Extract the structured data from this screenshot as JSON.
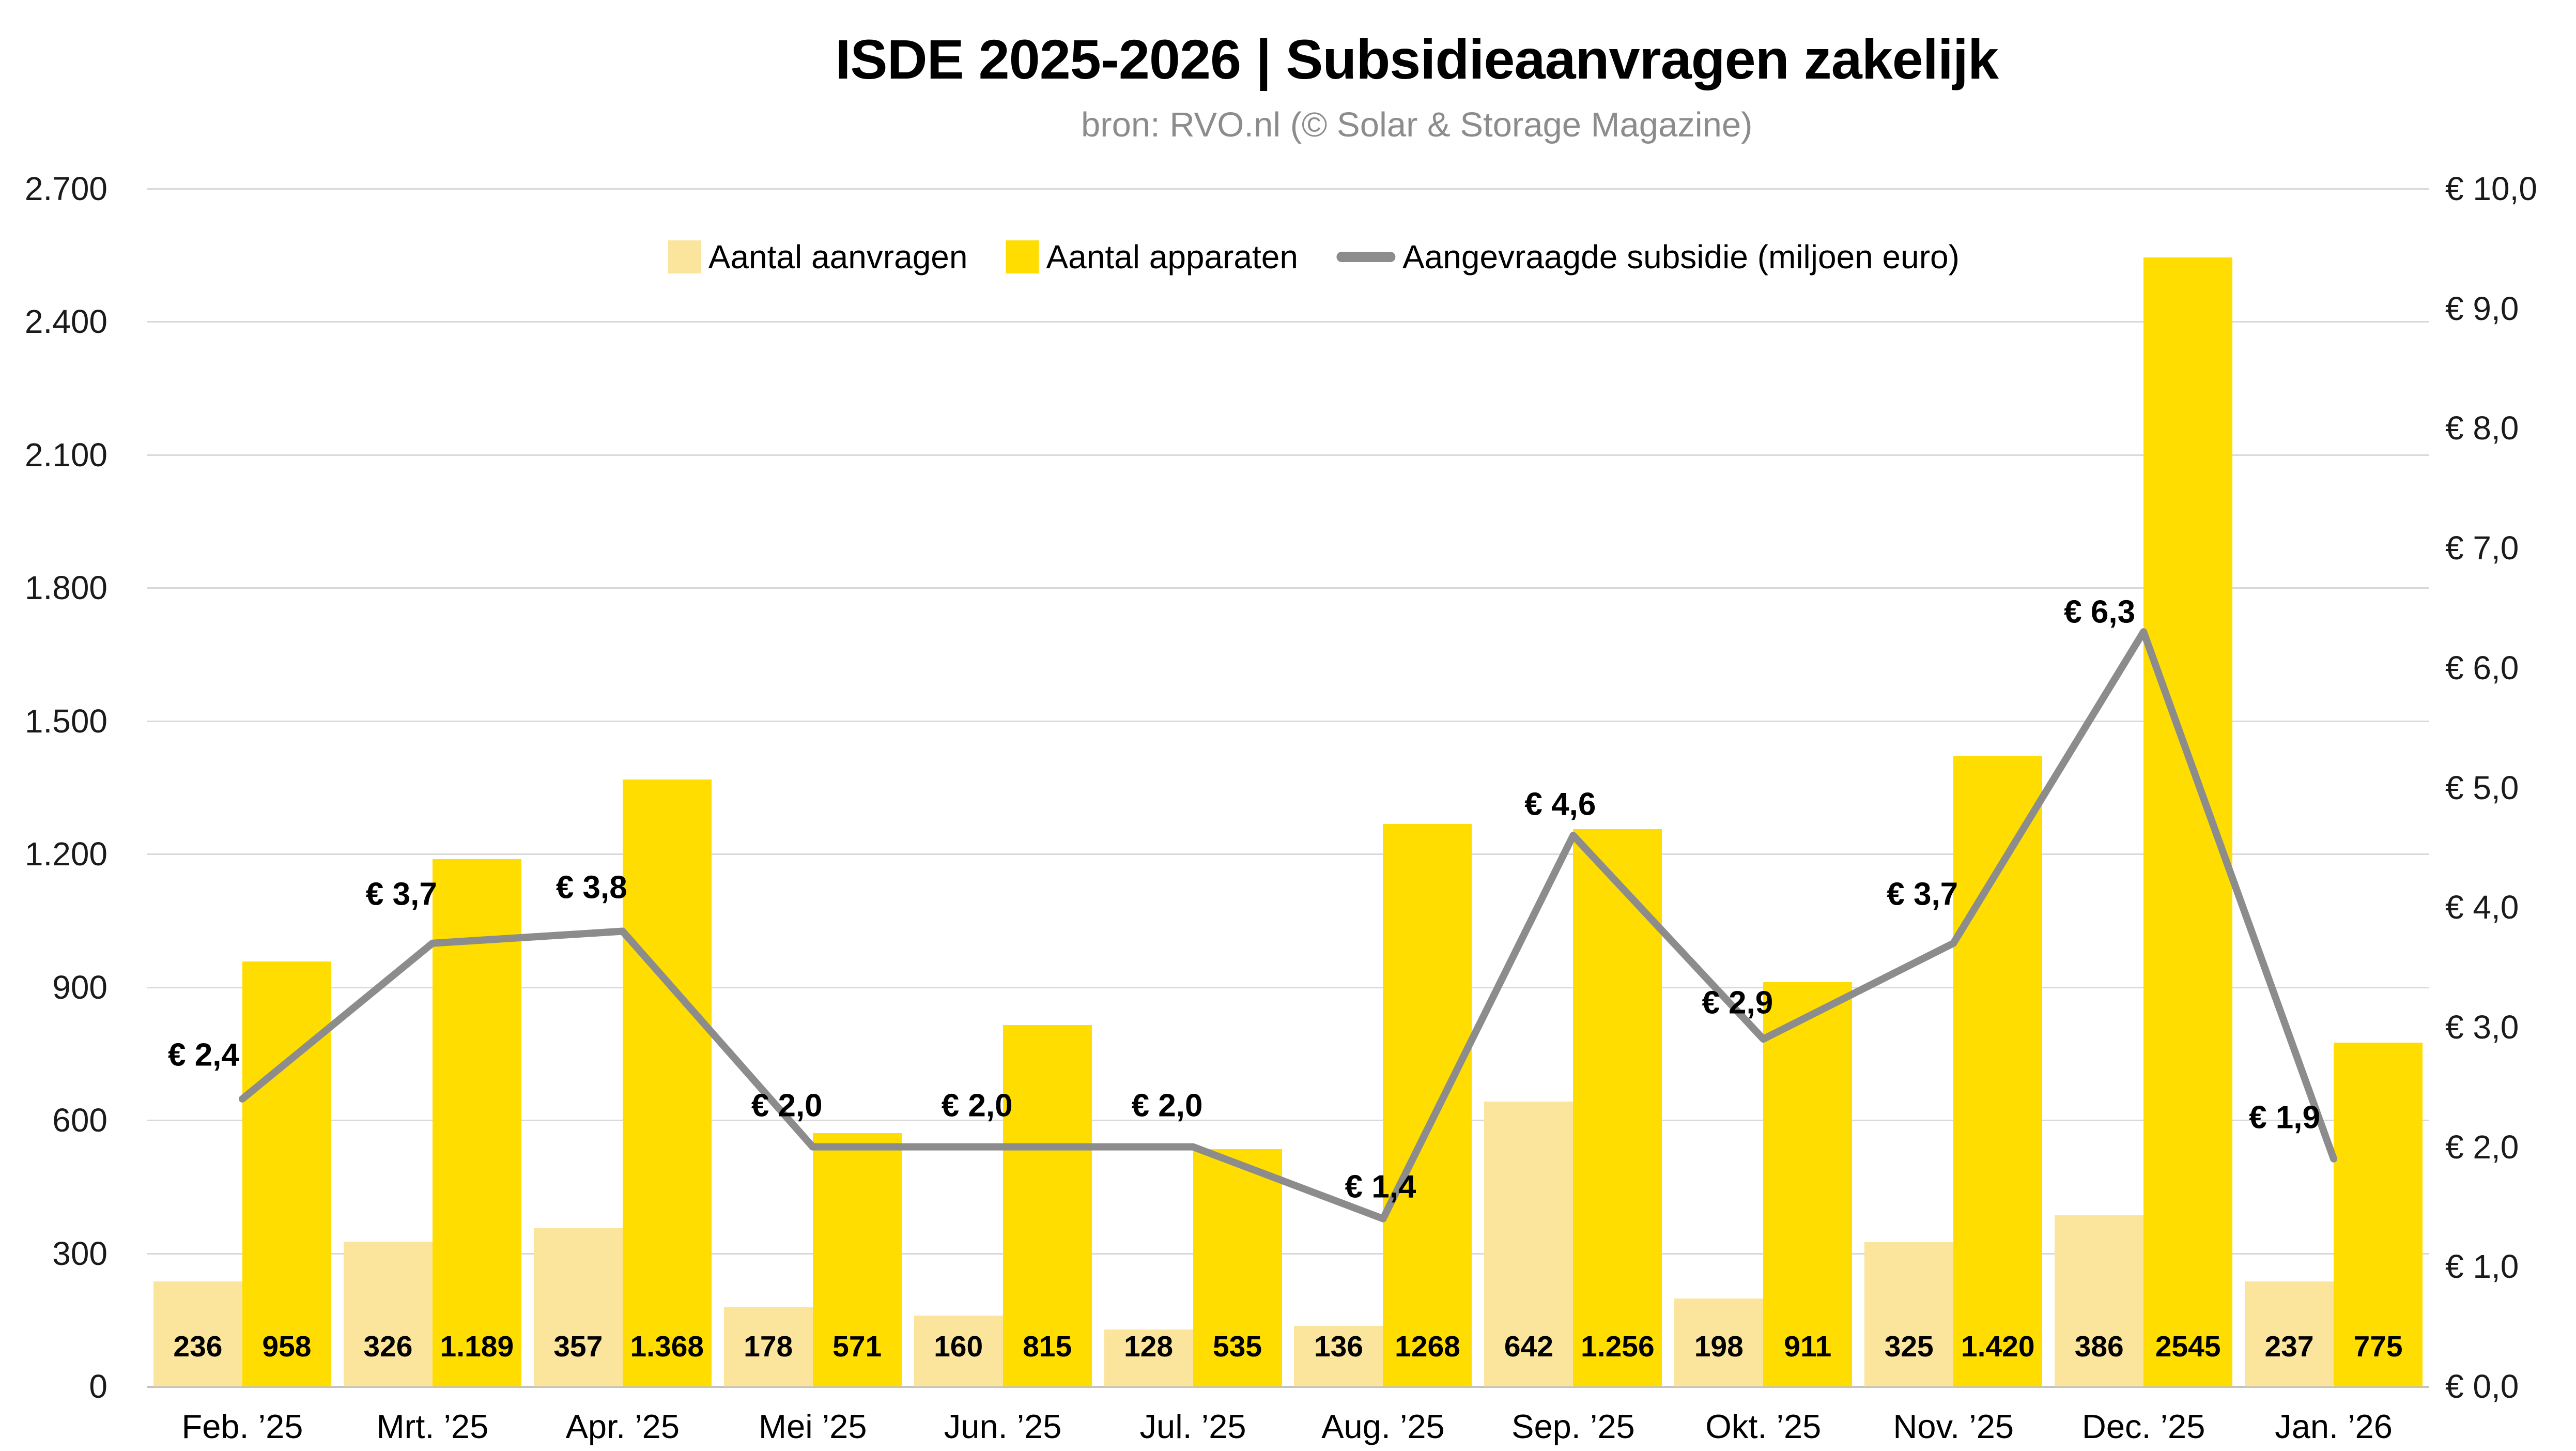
{
  "title": "ISDE 2025-2026 | Subsidieaanvragen zakelijk",
  "subtitle": "bron: RVO.nl (© Solar & Storage Magazine)",
  "legend": {
    "aanvragen": "Aantal aanvragen",
    "apparaten": "Aantal apparaten",
    "subsidie": "Aangevraagde subsidie (miljoen euro)"
  },
  "colors": {
    "aanvragen": "#FBE49B",
    "apparaten": "#FFDD00",
    "subsidie": "#8C8C8C",
    "grid": "#D9D9D9",
    "baseline": "#C2C2C2",
    "subtitle_text": "#8C8C8C",
    "text": "#000000"
  },
  "chart_data": {
    "type": "bar+line",
    "title": "ISDE 2025-2026 | Subsidieaanvragen zakelijk",
    "subtitle": "bron: RVO.nl (© Solar & Storage Magazine)",
    "categories": [
      "Feb. ’25",
      "Mrt. ’25",
      "Apr. ’25",
      "Mei ’25",
      "Jun. ’25",
      "Jul. ’25",
      "Aug. ’25",
      "Sep. ’25",
      "Okt. ’25",
      "Nov. ’25",
      "Dec. ’25",
      "Jan. ’26"
    ],
    "series": [
      {
        "name": "Aantal aanvragen",
        "type": "bar",
        "axis": "left",
        "values": [
          236,
          326,
          357,
          178,
          160,
          128,
          136,
          642,
          198,
          325,
          386,
          237
        ],
        "labels": [
          "236",
          "326",
          "357",
          "178",
          "160",
          "128",
          "136",
          "642",
          "198",
          "325",
          "386",
          "237"
        ]
      },
      {
        "name": "Aantal apparaten",
        "type": "bar",
        "axis": "left",
        "values": [
          958,
          1189,
          1368,
          571,
          815,
          535,
          1268,
          1256,
          911,
          1420,
          2545,
          775
        ],
        "labels": [
          "958",
          "1.189",
          "1.368",
          "571",
          "815",
          "535",
          "1268",
          "1.256",
          "911",
          "1.420",
          "2545",
          "775"
        ]
      },
      {
        "name": "Aangevraagde subsidie (miljoen euro)",
        "type": "line",
        "axis": "right",
        "values": [
          2.4,
          3.7,
          3.8,
          2.0,
          2.0,
          2.0,
          1.4,
          4.6,
          2.9,
          3.7,
          6.3,
          1.9
        ],
        "labels": [
          "€ 2,4",
          "€ 3,7",
          "€ 3,8",
          "€ 2,0",
          "€ 2,0",
          "€ 2,0",
          "€ 1,4",
          "€ 4,6",
          "€ 2,9",
          "€ 3,7",
          "€ 6,3",
          "€ 1,9"
        ]
      }
    ],
    "left_axis": {
      "min": 0,
      "max": 2700,
      "step": 300,
      "tick_labels": [
        "0",
        "300",
        "600",
        "900",
        "1.200",
        "1.500",
        "1.800",
        "2.100",
        "2.400",
        "2.700"
      ]
    },
    "right_axis": {
      "min": 0,
      "max": 10,
      "step": 1,
      "tick_labels": [
        "€ 0,0",
        "€ 1,0",
        "€ 2,0",
        "€ 3,0",
        "€ 4,0",
        "€ 5,0",
        "€ 6,0",
        "€ 7,0",
        "€ 8,0",
        "€ 9,0",
        "€ 10,0"
      ]
    },
    "grid": "horizontal",
    "legend_position": "top-center"
  }
}
